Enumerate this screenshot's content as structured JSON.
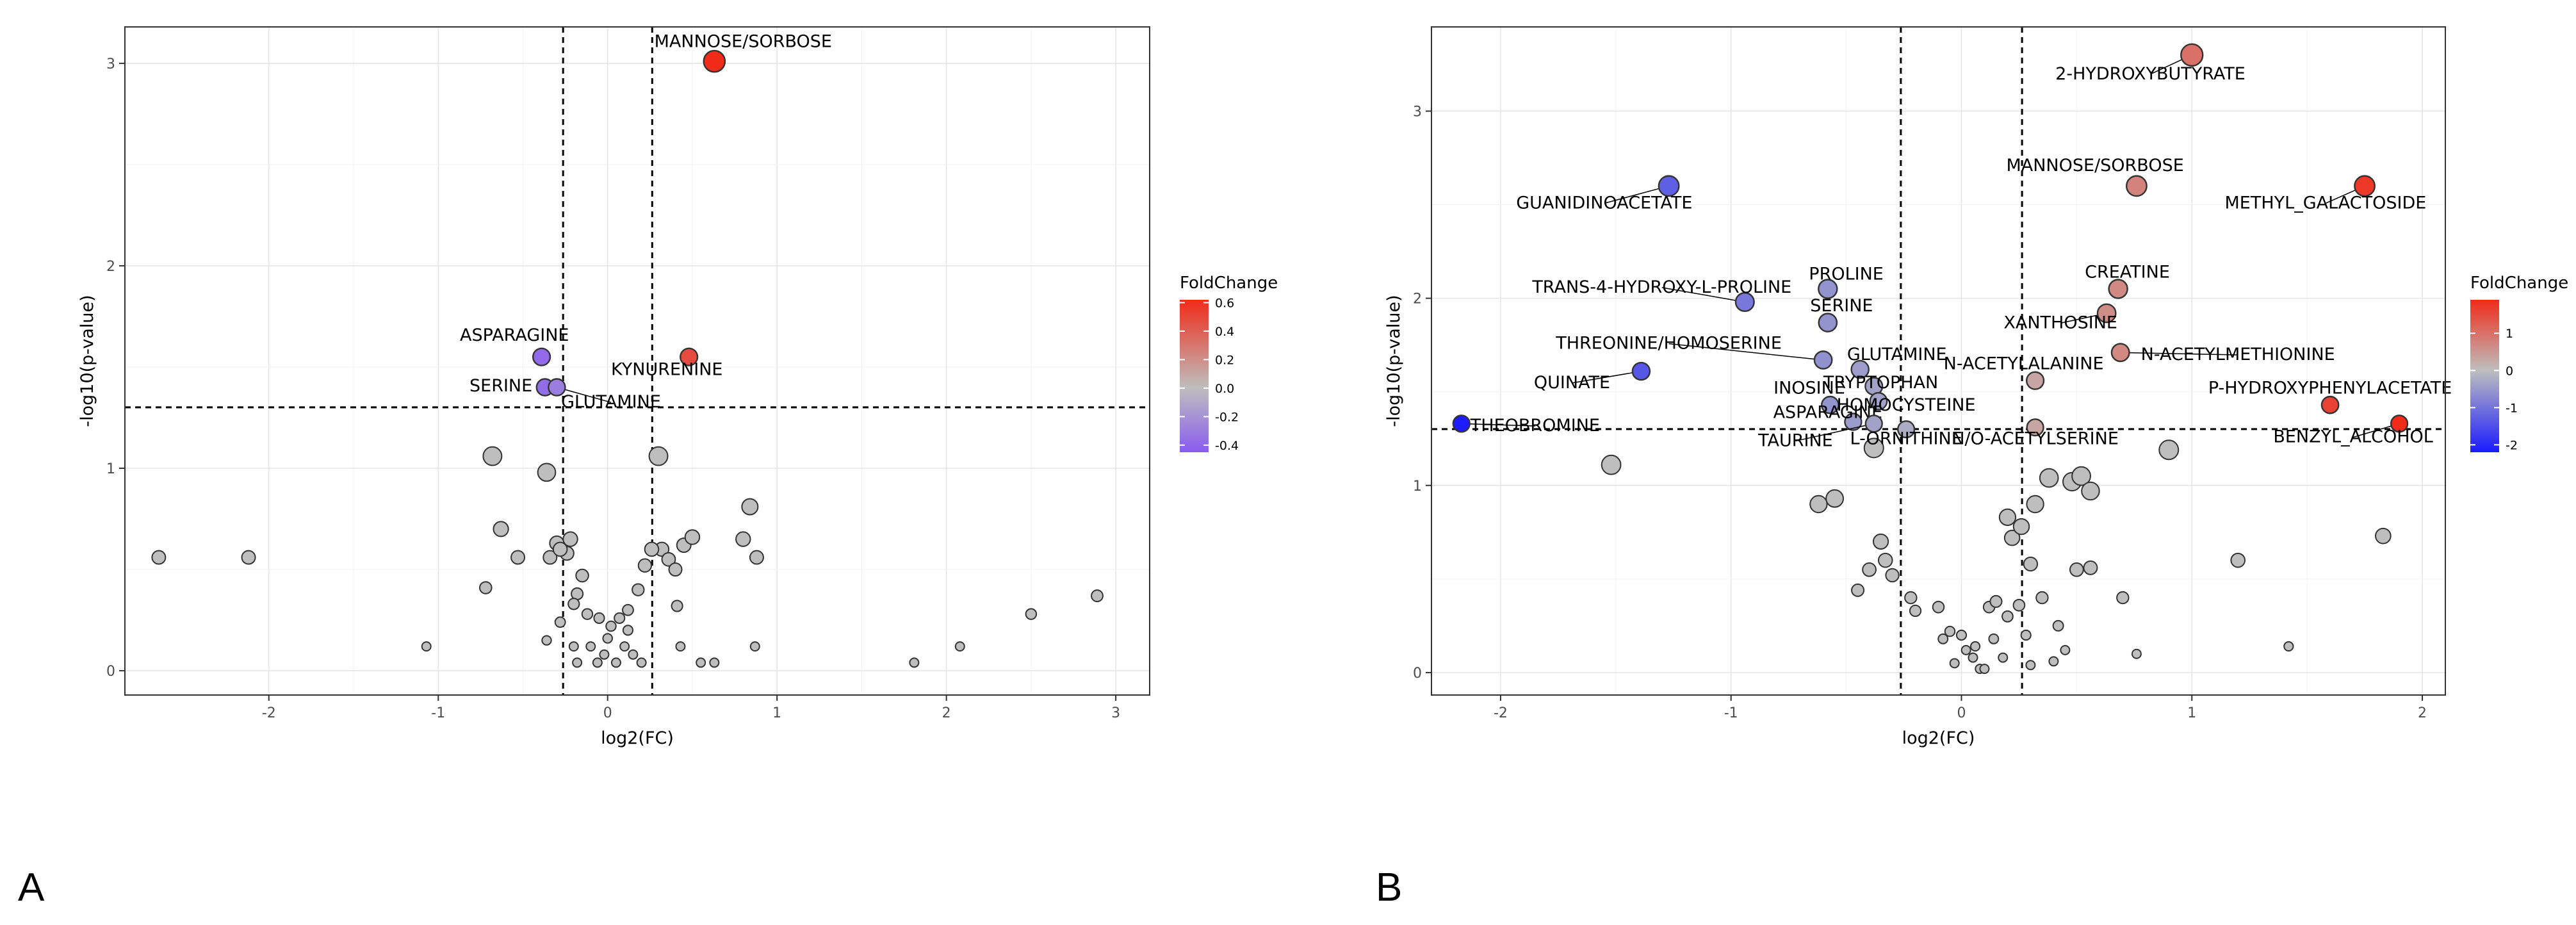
{
  "panels": {
    "left_label": "A",
    "right_label": "B"
  },
  "chart_data": [
    {
      "type": "scatter",
      "title": "",
      "xlabel": "log2(FC)",
      "ylabel": "-log10(p-value)",
      "xlim": [
        -2.85,
        3.2
      ],
      "ylim": [
        -0.12,
        3.18
      ],
      "x_ticks": [
        -2,
        -1,
        0,
        1,
        2,
        3
      ],
      "x_tick_labels": [
        "-2",
        "-1",
        "0",
        "1",
        "2",
        "3"
      ],
      "y_ticks": [
        0,
        1,
        2,
        3
      ],
      "y_tick_labels": [
        "0",
        "1",
        "2",
        "3"
      ],
      "thresholds": {
        "x": [
          -0.263,
          0.263
        ],
        "y": 1.301
      },
      "legend": {
        "title": "FoldChange",
        "position": "right",
        "colors": [
          "#8a5cf0",
          "#bebebe",
          "#f12b1a"
        ],
        "range": [
          -0.45,
          0.62
        ],
        "ticks": [
          0.6,
          0.4,
          0.2,
          0.0,
          -0.2,
          -0.4
        ],
        "tick_labels": [
          "0.6",
          "0.4",
          "0.2",
          "0.0",
          "-0.2",
          "-0.4"
        ]
      },
      "significant": [
        {
          "name": "MANNOSE/SORBOSE",
          "x": 0.63,
          "y": 3.01,
          "fc": 0.62,
          "label": "MANNOSE/SORBOSE",
          "lx": 0.8,
          "ly": 3.08,
          "anchor": "middle"
        },
        {
          "name": "ASPARAGINE",
          "x": -0.39,
          "y": 1.55,
          "fc": -0.39,
          "label": "ASPARAGINE",
          "lx": -0.55,
          "ly": 1.63,
          "anchor": "middle"
        },
        {
          "name": "SERINE",
          "x": -0.37,
          "y": 1.4,
          "fc": -0.37,
          "label": "SERINE",
          "lx": -0.63,
          "ly": 1.38,
          "anchor": "middle"
        },
        {
          "name": "GLUTAMINE",
          "x": -0.3,
          "y": 1.4,
          "fc": -0.3,
          "label": "GLUTAMINE",
          "lx": 0.02,
          "ly": 1.3,
          "anchor": "middle"
        },
        {
          "name": "KYNURENINE",
          "x": 0.48,
          "y": 1.55,
          "fc": 0.48,
          "label": "KYNURENINE",
          "lx": 0.35,
          "ly": 1.46,
          "anchor": "middle"
        }
      ],
      "points": [
        {
          "x": -2.65,
          "y": 0.56
        },
        {
          "x": -2.12,
          "y": 0.56
        },
        {
          "x": -1.07,
          "y": 0.12
        },
        {
          "x": -0.68,
          "y": 1.06
        },
        {
          "x": -0.63,
          "y": 0.7
        },
        {
          "x": -0.53,
          "y": 0.56
        },
        {
          "x": -0.72,
          "y": 0.41
        },
        {
          "x": -0.36,
          "y": 0.98
        },
        {
          "x": -0.3,
          "y": 0.63
        },
        {
          "x": -0.34,
          "y": 0.56
        },
        {
          "x": -0.22,
          "y": 0.65
        },
        {
          "x": -0.24,
          "y": 0.58
        },
        {
          "x": -0.28,
          "y": 0.6
        },
        {
          "x": -0.15,
          "y": 0.47
        },
        {
          "x": -0.18,
          "y": 0.38
        },
        {
          "x": -0.36,
          "y": 0.15
        },
        {
          "x": -0.28,
          "y": 0.24
        },
        {
          "x": -0.2,
          "y": 0.33
        },
        {
          "x": -0.12,
          "y": 0.28
        },
        {
          "x": -0.05,
          "y": 0.26
        },
        {
          "x": 0.02,
          "y": 0.22
        },
        {
          "x": 0.07,
          "y": 0.26
        },
        {
          "x": 0.12,
          "y": 0.3
        },
        {
          "x": 0.18,
          "y": 0.4
        },
        {
          "x": 0.22,
          "y": 0.52
        },
        {
          "x": 0.3,
          "y": 1.06
        },
        {
          "x": 0.32,
          "y": 0.6
        },
        {
          "x": 0.36,
          "y": 0.55
        },
        {
          "x": 0.4,
          "y": 0.5
        },
        {
          "x": 0.45,
          "y": 0.62
        },
        {
          "x": 0.5,
          "y": 0.66
        },
        {
          "x": 0.41,
          "y": 0.32
        },
        {
          "x": 0.43,
          "y": 0.12
        },
        {
          "x": 0.26,
          "y": 0.6
        },
        {
          "x": -0.1,
          "y": 0.12
        },
        {
          "x": -0.02,
          "y": 0.08
        },
        {
          "x": 0.05,
          "y": 0.04
        },
        {
          "x": 0.1,
          "y": 0.12
        },
        {
          "x": 0.15,
          "y": 0.08
        },
        {
          "x": -0.18,
          "y": 0.04
        },
        {
          "x": 0.0,
          "y": 0.16
        },
        {
          "x": 0.2,
          "y": 0.04
        },
        {
          "x": -0.06,
          "y": 0.04
        },
        {
          "x": 0.12,
          "y": 0.2
        },
        {
          "x": 0.55,
          "y": 0.04
        },
        {
          "x": 0.8,
          "y": 0.65
        },
        {
          "x": 0.84,
          "y": 0.81
        },
        {
          "x": 0.88,
          "y": 0.56
        },
        {
          "x": 0.87,
          "y": 0.12
        },
        {
          "x": 1.81,
          "y": 0.04
        },
        {
          "x": 2.08,
          "y": 0.12
        },
        {
          "x": 2.5,
          "y": 0.28
        },
        {
          "x": 2.89,
          "y": 0.37
        },
        {
          "x": 0.63,
          "y": 0.04
        },
        {
          "x": -0.2,
          "y": 0.12
        }
      ]
    },
    {
      "type": "scatter",
      "title": "",
      "xlabel": "log2(FC)",
      "ylabel": "-log10(p-value)",
      "xlim": [
        -2.3,
        2.1
      ],
      "ylim": [
        -0.12,
        3.45
      ],
      "x_ticks": [
        -2,
        -1,
        0,
        1,
        2
      ],
      "x_tick_labels": [
        "-2",
        "-1",
        "0",
        "1",
        "2"
      ],
      "y_ticks": [
        0,
        1,
        2,
        3
      ],
      "y_tick_labels": [
        "0",
        "1",
        "2",
        "3"
      ],
      "thresholds": {
        "x": [
          -0.263,
          0.263
        ],
        "y": 1.301
      },
      "legend": {
        "title": "FoldChange",
        "position": "right",
        "colors": [
          "#1a1aff",
          "#bebebe",
          "#f12b1a"
        ],
        "range": [
          -2.2,
          1.9
        ],
        "ticks": [
          1,
          0,
          -1,
          -2
        ],
        "tick_labels": [
          "1",
          "0",
          "-1",
          "-2"
        ]
      },
      "significant": [
        {
          "name": "2-HYDROXYBUTYRATE",
          "x": 1.0,
          "y": 3.3,
          "fc": 1.0,
          "label": "2-HYDROXYBUTYRATE",
          "lx": 0.82,
          "ly": 3.17,
          "anchor": "middle"
        },
        {
          "name": "MANNOSE/SORBOSE",
          "x": 0.76,
          "y": 2.6,
          "fc": 0.76,
          "label": "MANNOSE/SORBOSE",
          "lx": 0.58,
          "ly": 2.68,
          "anchor": "middle"
        },
        {
          "name": "METHYL_GALACTOSIDE",
          "x": 1.75,
          "y": 2.6,
          "fc": 1.75,
          "label": "METHYL_GALACTOSIDE",
          "lx": 1.58,
          "ly": 2.48,
          "anchor": "middle"
        },
        {
          "name": "GUANIDINOACETATE",
          "x": -1.27,
          "y": 2.6,
          "fc": -1.27,
          "label": "GUANIDINOACETATE",
          "lx": -1.55,
          "ly": 2.48,
          "anchor": "middle"
        },
        {
          "name": "TRANS-4-HYDROXY-L-PROLINE",
          "x": -0.94,
          "y": 1.98,
          "fc": -0.94,
          "label": "TRANS-4-HYDROXY-L-PROLINE",
          "lx": -1.3,
          "ly": 2.03,
          "anchor": "middle"
        },
        {
          "name": "PROLINE",
          "x": -0.58,
          "y": 2.05,
          "fc": -0.58,
          "label": "PROLINE",
          "lx": -0.5,
          "ly": 2.1,
          "anchor": "middle"
        },
        {
          "name": "SERINE",
          "x": -0.58,
          "y": 1.87,
          "fc": -0.58,
          "label": "SERINE",
          "lx": -0.52,
          "ly": 1.93,
          "anchor": "middle"
        },
        {
          "name": "CREATINE",
          "x": 0.68,
          "y": 2.05,
          "fc": 0.68,
          "label": "CREATINE",
          "lx": 0.72,
          "ly": 2.11,
          "anchor": "middle"
        },
        {
          "name": "XANTHOSINE",
          "x": 0.63,
          "y": 1.92,
          "fc": 0.63,
          "label": "XANTHOSINE",
          "lx": 0.43,
          "ly": 1.84,
          "anchor": "middle"
        },
        {
          "name": "N-ACETYLMETHIONINE",
          "x": 0.69,
          "y": 1.71,
          "fc": 0.69,
          "label": "N-ACETYLMETHIONINE",
          "lx": 1.2,
          "ly": 1.67,
          "anchor": "middle"
        },
        {
          "name": "THREONINE/HOMOSERINE",
          "x": -0.6,
          "y": 1.67,
          "fc": -0.6,
          "label": "THREONINE/HOMOSERINE",
          "lx": -1.27,
          "ly": 1.73,
          "anchor": "middle"
        },
        {
          "name": "GLUTAMINE",
          "x": -0.44,
          "y": 1.62,
          "fc": -0.44,
          "label": "GLUTAMINE",
          "lx": -0.28,
          "ly": 1.67,
          "anchor": "middle"
        },
        {
          "name": "N-ACETYLALANINE",
          "x": 0.32,
          "y": 1.56,
          "fc": 0.32,
          "label": "N-ACETYLALANINE",
          "lx": 0.27,
          "ly": 1.62,
          "anchor": "middle"
        },
        {
          "name": "QUINATE",
          "x": -1.39,
          "y": 1.61,
          "fc": -1.39,
          "label": "QUINATE",
          "lx": -1.69,
          "ly": 1.52,
          "anchor": "middle"
        },
        {
          "name": "TRYPTOPHAN",
          "x": -0.38,
          "y": 1.53,
          "fc": -0.38,
          "label": "TRYPTOPHAN",
          "lx": -0.35,
          "ly": 1.52,
          "anchor": "middle"
        },
        {
          "name": "INOSINE",
          "x": -0.57,
          "y": 1.43,
          "fc": -0.57,
          "label": "INOSINE",
          "lx": -0.66,
          "ly": 1.49,
          "anchor": "middle"
        },
        {
          "name": "HOMOCYSTEINE",
          "x": -0.36,
          "y": 1.45,
          "fc": -0.36,
          "label": "HOMOCYSTEINE",
          "lx": -0.24,
          "ly": 1.4,
          "anchor": "middle"
        },
        {
          "name": "ASPARAGINE",
          "x": -0.47,
          "y": 1.34,
          "fc": -0.47,
          "label": "ASPARAGINE",
          "lx": -0.58,
          "ly": 1.36,
          "anchor": "middle"
        },
        {
          "name": "THEOBROMINE",
          "x": -2.17,
          "y": 1.33,
          "fc": -2.17,
          "label": "THEOBROMINE",
          "lx": -1.85,
          "ly": 1.29,
          "anchor": "middle"
        },
        {
          "name": "P-HYDROXYPHENYLACETATE",
          "x": 1.6,
          "y": 1.43,
          "fc": 1.6,
          "label": "P-HYDROXYPHENYLACETATE",
          "lx": 1.6,
          "ly": 1.49,
          "anchor": "middle"
        },
        {
          "name": "BENZYL_ALCOHOL",
          "x": 1.9,
          "y": 1.33,
          "fc": 1.9,
          "label": "BENZYL_ALCOHOL",
          "lx": 1.7,
          "ly": 1.23,
          "anchor": "middle"
        },
        {
          "name": "TAURINE",
          "x": -0.38,
          "y": 1.33,
          "fc": -0.38,
          "label": "TAURINE",
          "lx": -0.72,
          "ly": 1.21,
          "anchor": "middle"
        },
        {
          "name": "L-ORNITHINE",
          "x": -0.24,
          "y": 1.3,
          "fc": -0.24,
          "label": "L-ORNITHINE",
          "lx": -0.24,
          "ly": 1.22,
          "anchor": "middle"
        },
        {
          "name": "N/O-ACETYLSERINE",
          "x": 0.32,
          "y": 1.31,
          "fc": 0.32,
          "label": "N/O-ACETYLSERINE",
          "lx": 0.32,
          "ly": 1.22,
          "anchor": "middle"
        }
      ],
      "points": [
        {
          "x": -1.52,
          "y": 1.11
        },
        {
          "x": -0.62,
          "y": 0.9
        },
        {
          "x": -0.55,
          "y": 0.93
        },
        {
          "x": -0.38,
          "y": 1.2
        },
        {
          "x": -0.35,
          "y": 0.7
        },
        {
          "x": -0.33,
          "y": 0.6
        },
        {
          "x": -0.4,
          "y": 0.55
        },
        {
          "x": -0.3,
          "y": 0.52
        },
        {
          "x": -0.45,
          "y": 0.44
        },
        {
          "x": -0.22,
          "y": 0.4
        },
        {
          "x": -0.2,
          "y": 0.33
        },
        {
          "x": -0.1,
          "y": 0.35
        },
        {
          "x": -0.05,
          "y": 0.22
        },
        {
          "x": 0.0,
          "y": 0.2
        },
        {
          "x": 0.02,
          "y": 0.12
        },
        {
          "x": -0.03,
          "y": 0.05
        },
        {
          "x": 0.05,
          "y": 0.08
        },
        {
          "x": 0.08,
          "y": 0.02
        },
        {
          "x": 0.12,
          "y": 0.35
        },
        {
          "x": 0.15,
          "y": 0.38
        },
        {
          "x": 0.2,
          "y": 0.3
        },
        {
          "x": 0.25,
          "y": 0.36
        },
        {
          "x": 0.28,
          "y": 0.2
        },
        {
          "x": 0.2,
          "y": 0.83
        },
        {
          "x": 0.22,
          "y": 0.72
        },
        {
          "x": 0.26,
          "y": 0.78
        },
        {
          "x": 0.32,
          "y": 0.9
        },
        {
          "x": 0.38,
          "y": 1.04
        },
        {
          "x": 0.48,
          "y": 1.02
        },
        {
          "x": 0.52,
          "y": 1.05
        },
        {
          "x": 0.56,
          "y": 0.97
        },
        {
          "x": 0.9,
          "y": 1.19
        },
        {
          "x": 0.5,
          "y": 0.55
        },
        {
          "x": 0.56,
          "y": 0.56
        },
        {
          "x": 0.35,
          "y": 0.4
        },
        {
          "x": 0.42,
          "y": 0.25
        },
        {
          "x": 0.45,
          "y": 0.12
        },
        {
          "x": 0.4,
          "y": 0.06
        },
        {
          "x": 0.7,
          "y": 0.4
        },
        {
          "x": 0.76,
          "y": 0.1
        },
        {
          "x": 1.2,
          "y": 0.6
        },
        {
          "x": 1.42,
          "y": 0.14
        },
        {
          "x": 1.83,
          "y": 0.73
        },
        {
          "x": 0.14,
          "y": 0.18
        },
        {
          "x": 0.18,
          "y": 0.08
        },
        {
          "x": 0.1,
          "y": 0.02
        },
        {
          "x": 0.3,
          "y": 0.04
        },
        {
          "x": -0.08,
          "y": 0.18
        },
        {
          "x": 0.06,
          "y": 0.14
        },
        {
          "x": 0.3,
          "y": 0.58
        }
      ]
    }
  ]
}
